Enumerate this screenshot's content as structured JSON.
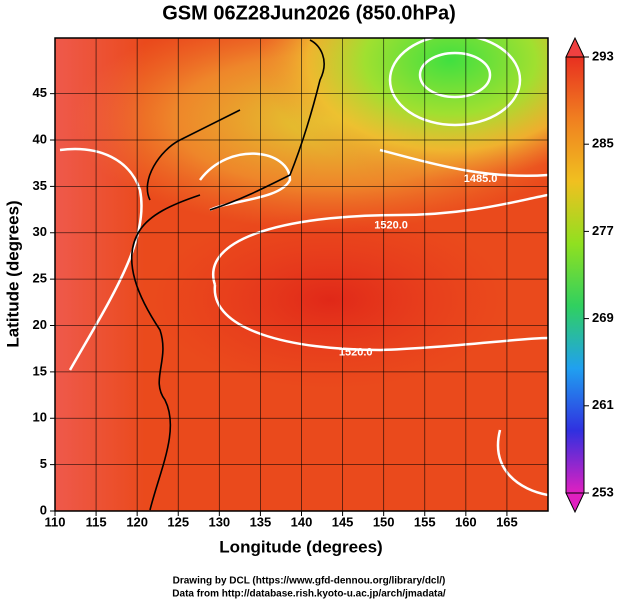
{
  "chart_data": {
    "type": "contour",
    "title": "GSM 06Z28Jun2026 (850.0hPa)",
    "xlabel": "Longitude (degrees)",
    "ylabel": "Latitude  (degrees)",
    "xlim": [
      110,
      170
    ],
    "ylim": [
      0,
      51
    ],
    "xticks": [
      110,
      115,
      120,
      125,
      130,
      135,
      140,
      145,
      150,
      155,
      160,
      165
    ],
    "yticks": [
      0,
      5,
      10,
      15,
      20,
      25,
      30,
      35,
      40,
      45
    ],
    "grid": true,
    "colorbar": {
      "lim": [
        253,
        293
      ],
      "ticks": [
        253,
        261,
        269,
        277,
        285,
        293
      ],
      "colors": [
        "#e020c0",
        "#3030e0",
        "#20a0f0",
        "#30d060",
        "#90e020",
        "#f0c020",
        "#f08020",
        "#e83020"
      ]
    },
    "contour_labels": [
      {
        "text": "1520.0",
        "x": 150.9,
        "y": 30.8
      },
      {
        "text": "1520.0",
        "x": 146.6,
        "y": 17.1
      },
      {
        "text": "1485.0",
        "x": 161.8,
        "y": 35.8
      }
    ],
    "credits": [
      "Drawing by DCL (https://www.gfd-dennou.org/library/dcl/)",
      "Data from http://database.rish.kyoto-u.ac.jp/arch/jmadata/"
    ]
  }
}
